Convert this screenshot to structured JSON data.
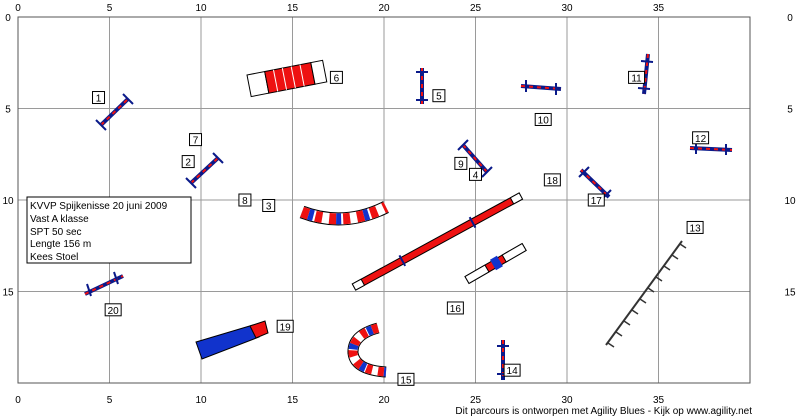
{
  "grid": {
    "x_ticks": [
      "0",
      "5",
      "10",
      "15",
      "20",
      "25",
      "30",
      "35"
    ],
    "y_ticks": [
      "0",
      "5",
      "10",
      "15"
    ],
    "x_max": 40,
    "y_max": 20
  },
  "info": {
    "lines": [
      "KVVP Spijkenisse 20 juni 2009",
      "Vast A klasse",
      "SPT 50 sec",
      "Lengte 156 m",
      "Kees Stoel"
    ]
  },
  "numbers": [
    {
      "n": "1",
      "x": 4.4,
      "y": 4.4
    },
    {
      "n": "2",
      "x": 9.3,
      "y": 7.9
    },
    {
      "n": "3",
      "x": 13.7,
      "y": 10.3
    },
    {
      "n": "4",
      "x": 25.0,
      "y": 8.6
    },
    {
      "n": "5",
      "x": 23.0,
      "y": 4.3
    },
    {
      "n": "6",
      "x": 17.4,
      "y": 3.3
    },
    {
      "n": "7",
      "x": 9.7,
      "y": 6.7
    },
    {
      "n": "8",
      "x": 12.4,
      "y": 10.0
    },
    {
      "n": "9",
      "x": 24.2,
      "y": 8.0
    },
    {
      "n": "10",
      "x": 28.7,
      "y": 5.6
    },
    {
      "n": "11",
      "x": 33.8,
      "y": 3.3
    },
    {
      "n": "12",
      "x": 37.3,
      "y": 6.6
    },
    {
      "n": "13",
      "x": 37.0,
      "y": 11.5
    },
    {
      "n": "14",
      "x": 27.0,
      "y": 19.3
    },
    {
      "n": "15",
      "x": 21.2,
      "y": 19.8
    },
    {
      "n": "16",
      "x": 23.9,
      "y": 15.9
    },
    {
      "n": "17",
      "x": 31.6,
      "y": 10.0
    },
    {
      "n": "18",
      "x": 29.2,
      "y": 8.9
    },
    {
      "n": "19",
      "x": 14.6,
      "y": 16.9
    },
    {
      "n": "20",
      "x": 5.2,
      "y": 16.0
    }
  ],
  "colors": {
    "red": "#ee1111",
    "blue": "#1133cc",
    "dark_blue": "#0a1a8a",
    "grid": "#9a9a9a"
  },
  "footer": "Dit parcours is ontworpen met Agility Blues - Kijk op www.agility.net"
}
